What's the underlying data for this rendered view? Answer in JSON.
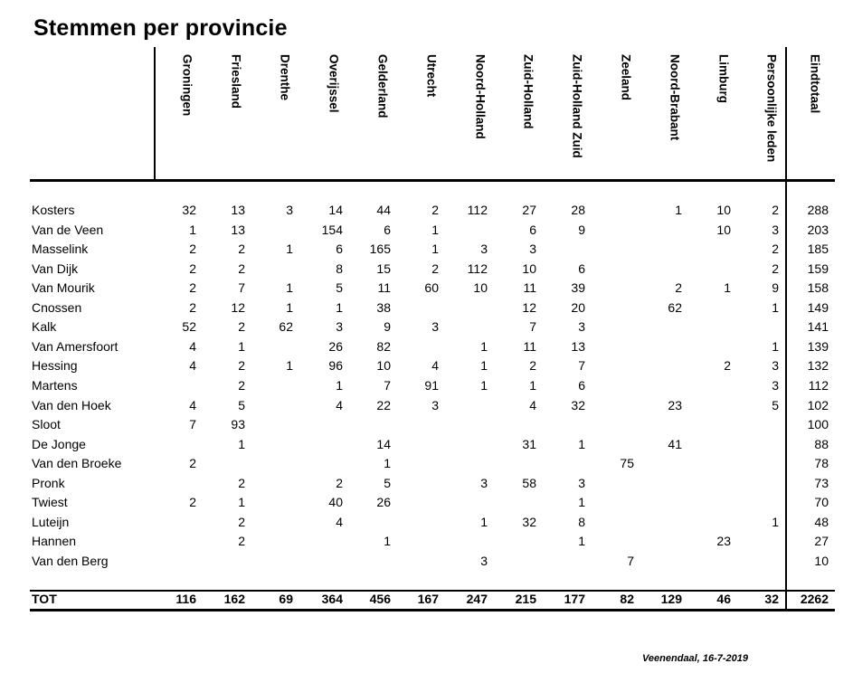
{
  "title": "Stemmen per provincie",
  "columns": [
    "Groningen",
    "Friesland",
    "Drenthe",
    "Overijssel",
    "Gelderland",
    "Utrecht",
    "Noord-Holland",
    "Zuid-Holland",
    "Zuid-Holland Zuid",
    "Zeeland",
    "Noord-Brabant",
    "Limburg",
    "Persoonlijke leden",
    "Eindtotaal"
  ],
  "rows": [
    {
      "name": "Kosters",
      "values": [
        "32",
        "13",
        "3",
        "14",
        "44",
        "2",
        "112",
        "27",
        "28",
        "",
        "1",
        "10",
        "2",
        "288"
      ]
    },
    {
      "name": "Van de Veen",
      "values": [
        "1",
        "13",
        "",
        "154",
        "6",
        "1",
        "",
        "6",
        "9",
        "",
        "",
        "10",
        "3",
        "203"
      ]
    },
    {
      "name": "Masselink",
      "values": [
        "2",
        "2",
        "1",
        "6",
        "165",
        "1",
        "3",
        "3",
        "",
        "",
        "",
        "",
        "2",
        "185"
      ]
    },
    {
      "name": "Van Dijk",
      "values": [
        "2",
        "2",
        "",
        "8",
        "15",
        "2",
        "112",
        "10",
        "6",
        "",
        "",
        "",
        "2",
        "159"
      ]
    },
    {
      "name": "Van Mourik",
      "values": [
        "2",
        "7",
        "1",
        "5",
        "11",
        "60",
        "10",
        "11",
        "39",
        "",
        "2",
        "1",
        "9",
        "158"
      ]
    },
    {
      "name": "Cnossen",
      "values": [
        "2",
        "12",
        "1",
        "1",
        "38",
        "",
        "",
        "12",
        "20",
        "",
        "62",
        "",
        "1",
        "149"
      ]
    },
    {
      "name": "Kalk",
      "values": [
        "52",
        "2",
        "62",
        "3",
        "9",
        "3",
        "",
        "7",
        "3",
        "",
        "",
        "",
        "",
        "141"
      ]
    },
    {
      "name": "Van Amersfoort",
      "values": [
        "4",
        "1",
        "",
        "26",
        "82",
        "",
        "1",
        "11",
        "13",
        "",
        "",
        "",
        "1",
        "139"
      ]
    },
    {
      "name": "Hessing",
      "values": [
        "4",
        "2",
        "1",
        "96",
        "10",
        "4",
        "1",
        "2",
        "7",
        "",
        "",
        "2",
        "3",
        "132"
      ]
    },
    {
      "name": "Martens",
      "values": [
        "",
        "2",
        "",
        "1",
        "7",
        "91",
        "1",
        "1",
        "6",
        "",
        "",
        "",
        "3",
        "112"
      ]
    },
    {
      "name": "Van den Hoek",
      "values": [
        "4",
        "5",
        "",
        "4",
        "22",
        "3",
        "",
        "4",
        "32",
        "",
        "23",
        "",
        "5",
        "102"
      ]
    },
    {
      "name": "Sloot",
      "values": [
        "7",
        "93",
        "",
        "",
        "",
        "",
        "",
        "",
        "",
        "",
        "",
        "",
        "",
        "100"
      ]
    },
    {
      "name": "De Jonge",
      "values": [
        "",
        "1",
        "",
        "",
        "14",
        "",
        "",
        "31",
        "1",
        "",
        "41",
        "",
        "",
        "88"
      ]
    },
    {
      "name": "Van den Broeke",
      "values": [
        "2",
        "",
        "",
        "",
        "1",
        "",
        "",
        "",
        "",
        "75",
        "",
        "",
        "",
        "78"
      ]
    },
    {
      "name": "Pronk",
      "values": [
        "",
        "2",
        "",
        "2",
        "5",
        "",
        "3",
        "58",
        "3",
        "",
        "",
        "",
        "",
        "73"
      ]
    },
    {
      "name": "Twiest",
      "values": [
        "2",
        "1",
        "",
        "40",
        "26",
        "",
        "",
        "",
        "1",
        "",
        "",
        "",
        "",
        "70"
      ]
    },
    {
      "name": "Luteijn",
      "values": [
        "",
        "2",
        "",
        "4",
        "",
        "",
        "1",
        "32",
        "8",
        "",
        "",
        "",
        "1",
        "48"
      ]
    },
    {
      "name": "Hannen",
      "values": [
        "",
        "2",
        "",
        "",
        "1",
        "",
        "",
        "",
        "1",
        "",
        "",
        "23",
        "",
        "27"
      ]
    },
    {
      "name": "Van den Berg",
      "values": [
        "",
        "",
        "",
        "",
        "",
        "",
        "3",
        "",
        "",
        "7",
        "",
        "",
        "",
        "10"
      ]
    }
  ],
  "total": {
    "name": "TOT",
    "values": [
      "116",
      "162",
      "69",
      "364",
      "456",
      "167",
      "247",
      "215",
      "177",
      "82",
      "129",
      "46",
      "32",
      "2262"
    ]
  },
  "footer": "Veenendaal, 16-7-2019"
}
